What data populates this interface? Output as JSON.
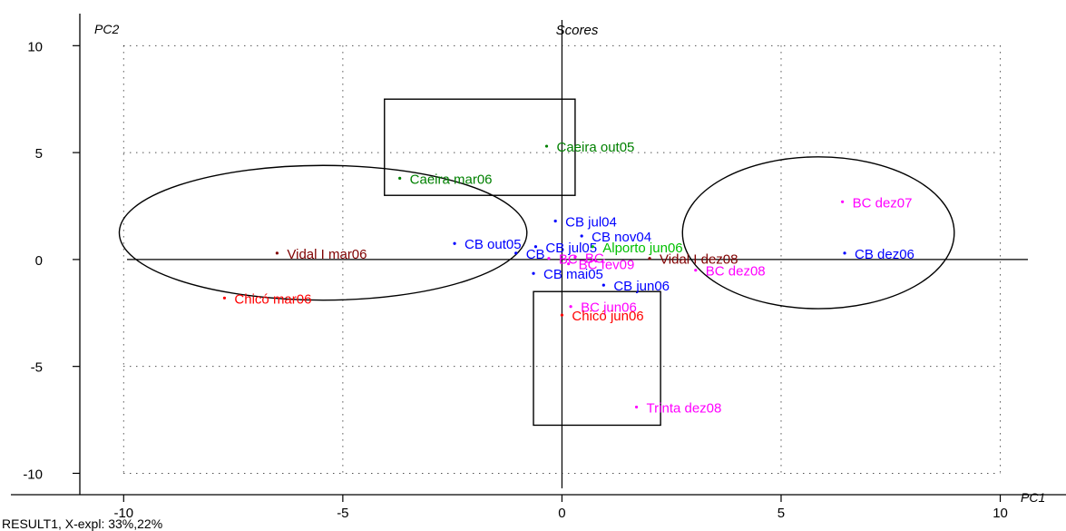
{
  "chart_data": {
    "type": "scatter",
    "title": "Scores",
    "xlabel": "PC1",
    "ylabel": "PC2",
    "xlim": [
      -11,
      11.5
    ],
    "ylim": [
      -11,
      11.5
    ],
    "xticks": [
      -10,
      -5,
      0,
      5,
      10
    ],
    "yticks": [
      -10,
      -5,
      0,
      5,
      10
    ],
    "grid": true,
    "footer": "RESULT1, X-expl: 33%,22%",
    "points": [
      {
        "label": "Caeira out05",
        "x": -0.35,
        "y": 5.3,
        "color": "#008000"
      },
      {
        "label": "Caeira mar06",
        "x": -3.7,
        "y": 3.8,
        "color": "#008000"
      },
      {
        "label": "Vidal I mar06",
        "x": -6.5,
        "y": 0.3,
        "color": "#800000"
      },
      {
        "label": "Chicó mar06",
        "x": -7.7,
        "y": -1.8,
        "color": "#ff0000"
      },
      {
        "label": "CB out05",
        "x": -2.45,
        "y": 0.75,
        "color": "#0000ff"
      },
      {
        "label": "CB jul04",
        "x": -0.15,
        "y": 1.8,
        "color": "#0000ff"
      },
      {
        "label": "CB nov04",
        "x": 0.45,
        "y": 1.1,
        "color": "#0000ff"
      },
      {
        "label": "CB jul05",
        "x": -0.6,
        "y": 0.6,
        "color": "#0000ff"
      },
      {
        "label": "CB",
        "x": -1.05,
        "y": 0.3,
        "color": "#0000ff"
      },
      {
        "label": "Alporto jun06",
        "x": 0.7,
        "y": 0.6,
        "color": "#00c000"
      },
      {
        "label": "Vidal I dez08",
        "x": 2.0,
        "y": 0.05,
        "color": "#800000"
      },
      {
        "label": "BC",
        "x": -0.3,
        "y": 0.05,
        "color": "#ff00ff"
      },
      {
        "label": "BC",
        "x": 0.3,
        "y": 0.1,
        "color": "#ff00ff"
      },
      {
        "label": "BC fev09",
        "x": 0.15,
        "y": -0.2,
        "color": "#ff00ff"
      },
      {
        "label": "CB mai05",
        "x": -0.65,
        "y": -0.65,
        "color": "#0000ff"
      },
      {
        "label": "CB jun06",
        "x": 0.95,
        "y": -1.2,
        "color": "#0000ff"
      },
      {
        "label": "BC jun06",
        "x": 0.2,
        "y": -2.2,
        "color": "#ff00ff"
      },
      {
        "label": "Chicó jun06",
        "x": 0.0,
        "y": -2.6,
        "color": "#ff0000"
      },
      {
        "label": "BC dez07",
        "x": 6.4,
        "y": 2.7,
        "color": "#ff00ff"
      },
      {
        "label": "CB dez06",
        "x": 6.45,
        "y": 0.3,
        "color": "#0000ff"
      },
      {
        "label": "BC dez08",
        "x": 3.05,
        "y": -0.5,
        "color": "#ff00ff"
      },
      {
        "label": "Trinta dez08",
        "x": 1.7,
        "y": -6.9,
        "color": "#ff00ff"
      }
    ],
    "rectangles": [
      {
        "x0": -4.05,
        "x1": 0.3,
        "y0": 3.0,
        "y1": 7.5
      },
      {
        "x0": -0.65,
        "x1": 2.25,
        "y0": -7.75,
        "y1": -1.5
      }
    ],
    "ellipses": [
      {
        "cx": -5.45,
        "cy": 1.25,
        "rx": 4.65,
        "ry": 3.15
      },
      {
        "cx": 5.85,
        "cy": 1.25,
        "rx": 3.1,
        "ry": 3.55
      }
    ]
  }
}
